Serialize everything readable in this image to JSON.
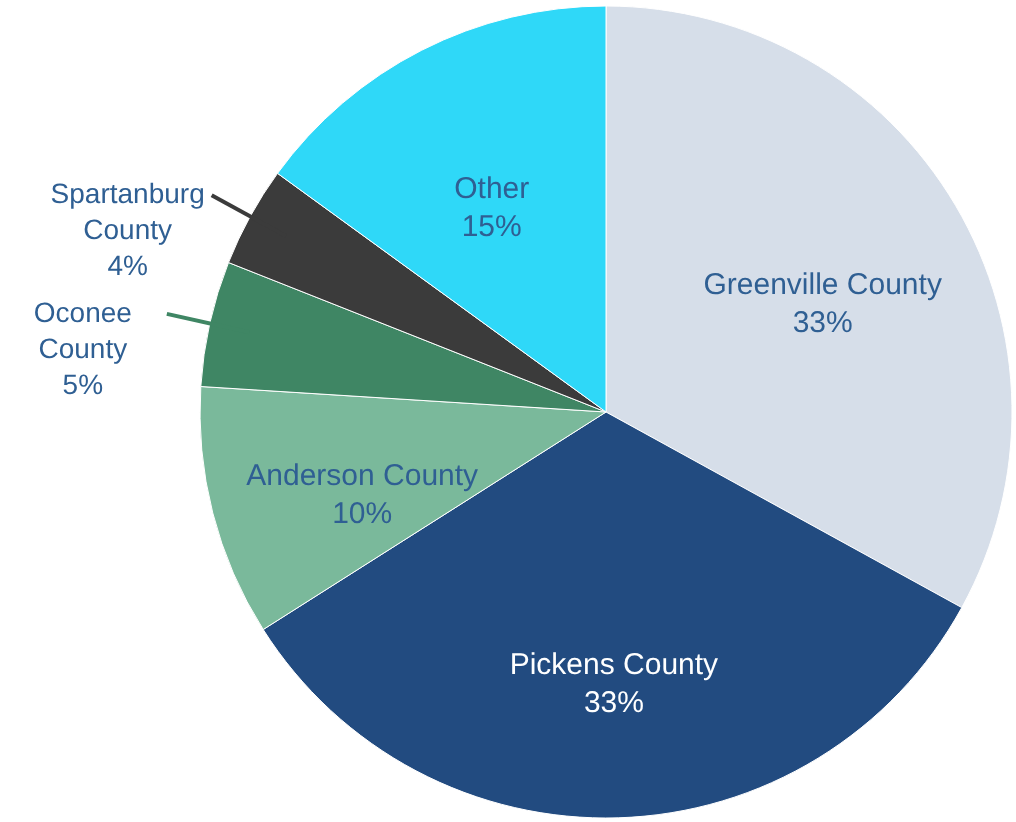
{
  "chart_data": {
    "type": "pie",
    "categories": [
      "Greenville County",
      "Pickens County",
      "Anderson County",
      "Oconee County",
      "Spartanburg County",
      "Other"
    ],
    "values": [
      33,
      33,
      10,
      5,
      4,
      15
    ],
    "colors": [
      "#d6dee9",
      "#224b80",
      "#7ab99b",
      "#3f8664",
      "#3b3b3b",
      "#2fd8f8"
    ],
    "value_labels": [
      "33%",
      "33%",
      "10%",
      "5%",
      "4%",
      "15%"
    ]
  }
}
